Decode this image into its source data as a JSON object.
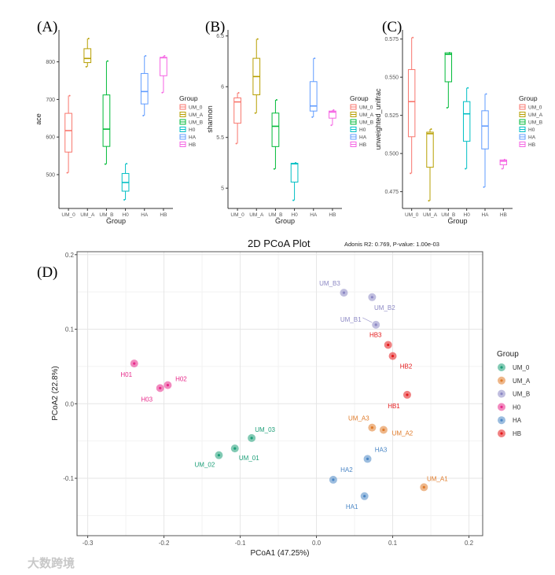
{
  "panel_labels": [
    "(A)",
    "(B)",
    "(C)",
    "(D)"
  ],
  "watermark": "大数跨境",
  "colors": {
    "box": {
      "UM_0": "#F8766D",
      "UM_A": "#B79F00",
      "UM_B": "#00BA38",
      "H0": "#00BFC4",
      "HA": "#619CFF",
      "HB": "#F564E3"
    },
    "pcoa": {
      "UM_0": "#1b9e77",
      "UM_A": "#e07b2a",
      "UM_B": "#8c88c4",
      "H0": "#e7298a",
      "HA": "#4a86c5",
      "HB": "#e41a1c"
    }
  },
  "chart_data": [
    {
      "type": "box",
      "panel": "(A)",
      "xlabel": "Group",
      "ylabel": "ace",
      "ylim": [
        410,
        885
      ],
      "yticks": [
        500,
        600,
        700,
        800
      ],
      "categories": [
        "UM_0",
        "UM_A",
        "UM_B",
        "H0",
        "HA",
        "HB"
      ],
      "legend_title": "Group",
      "legend_position": "right",
      "boxes": [
        {
          "group": "UM_0",
          "min": 505,
          "q1": 560,
          "median": 617,
          "q3": 663,
          "max": 710
        },
        {
          "group": "UM_A",
          "min": 787,
          "q1": 798,
          "median": 809,
          "q3": 835,
          "max": 862
        },
        {
          "group": "UM_B",
          "min": 528,
          "q1": 575,
          "median": 621,
          "q3": 712,
          "max": 802
        },
        {
          "group": "H0",
          "min": 433,
          "q1": 456,
          "median": 479,
          "q3": 503,
          "max": 529
        },
        {
          "group": "HA",
          "min": 657,
          "q1": 688,
          "median": 721,
          "q3": 769,
          "max": 816
        },
        {
          "group": "HB",
          "min": 718,
          "q1": 763,
          "median": 811,
          "q3": 812,
          "max": 816
        }
      ]
    },
    {
      "type": "box",
      "panel": "(B)",
      "xlabel": "Group",
      "ylabel": "shannon",
      "ylim": [
        4.8,
        6.56
      ],
      "yticks": [
        5.0,
        5.5,
        6.0,
        6.5
      ],
      "categories": [
        "UM_0",
        "UM_A",
        "UM_B",
        "H0",
        "HA",
        "HB"
      ],
      "legend_title": "Group",
      "legend_position": "right",
      "boxes": [
        {
          "group": "UM_0",
          "min": 5.44,
          "q1": 5.64,
          "median": 5.85,
          "q3": 5.89,
          "max": 5.94
        },
        {
          "group": "UM_A",
          "min": 5.74,
          "q1": 5.92,
          "median": 6.1,
          "q3": 6.28,
          "max": 6.47
        },
        {
          "group": "UM_B",
          "min": 5.19,
          "q1": 5.41,
          "median": 5.61,
          "q3": 5.74,
          "max": 5.87
        },
        {
          "group": "H0",
          "min": 4.88,
          "q1": 5.06,
          "median": 5.24,
          "q3": 5.245,
          "max": 5.25
        },
        {
          "group": "HA",
          "min": 5.7,
          "q1": 5.76,
          "median": 5.81,
          "q3": 6.05,
          "max": 6.28
        },
        {
          "group": "HB",
          "min": 5.62,
          "q1": 5.69,
          "median": 5.75,
          "q3": 5.76,
          "max": 5.77
        }
      ]
    },
    {
      "type": "box",
      "panel": "(C)",
      "xlabel": "Group",
      "ylabel": "unweighted_unifrac",
      "ylim": [
        0.464,
        0.581
      ],
      "yticks": [
        0.475,
        0.5,
        0.525,
        0.55,
        0.575
      ],
      "ytick_labels": [
        "0.475",
        "0.500",
        "0.525",
        "0.550",
        "0.575"
      ],
      "categories": [
        "UM_0",
        "UM_A",
        "UM_B",
        "H0",
        "HA",
        "HB"
      ],
      "legend_title": "Group",
      "legend_position": "right",
      "boxes": [
        {
          "group": "UM_0",
          "min": 0.487,
          "q1": 0.511,
          "median": 0.534,
          "q3": 0.555,
          "max": 0.576
        },
        {
          "group": "UM_A",
          "min": 0.469,
          "q1": 0.491,
          "median": 0.513,
          "q3": 0.514,
          "max": 0.516
        },
        {
          "group": "UM_B",
          "min": 0.53,
          "q1": 0.547,
          "median": 0.565,
          "q3": 0.566,
          "max": 0.566
        },
        {
          "group": "H0",
          "min": 0.49,
          "q1": 0.508,
          "median": 0.526,
          "q3": 0.534,
          "max": 0.543
        },
        {
          "group": "HA",
          "min": 0.478,
          "q1": 0.503,
          "median": 0.518,
          "q3": 0.528,
          "max": 0.539
        },
        {
          "group": "HB",
          "min": 0.49,
          "q1": 0.4926,
          "median": 0.495,
          "q3": 0.4958,
          "max": 0.496
        }
      ]
    },
    {
      "type": "scatter",
      "panel": "(D)",
      "title": "2D PCoA Plot",
      "subtitle": "Adonis R2: 0.769, P-value: 1.00e-03",
      "xlabel": "PCoA1 (47.25%)",
      "ylabel": "PCoA2 (22.8%)",
      "xlim": [
        -0.314,
        0.218
      ],
      "ylim": [
        -0.177,
        0.204
      ],
      "xticks": [
        -0.3,
        -0.2,
        -0.1,
        0.0,
        0.1,
        0.2
      ],
      "xtick_labels": [
        "-0.3",
        "-0.2",
        "-0.1",
        "0.0",
        "0.1",
        "0.2"
      ],
      "yticks": [
        -0.1,
        0.0,
        0.1,
        0.2
      ],
      "ytick_labels": [
        "-0.1",
        "0.0",
        "0.1",
        "0.2"
      ],
      "grid": true,
      "legend_title": "Group",
      "legend_position": "right",
      "legend": [
        "UM_0",
        "UM_A",
        "UM_B",
        "H0",
        "HA",
        "HB"
      ],
      "points": [
        {
          "label": "H01",
          "group": "H0",
          "x": -0.239,
          "y": 0.054
        },
        {
          "label": "H02",
          "group": "H0",
          "x": -0.195,
          "y": 0.025
        },
        {
          "label": "H03",
          "group": "H0",
          "x": -0.205,
          "y": 0.021
        },
        {
          "label": "UM_01",
          "group": "UM_0",
          "x": -0.107,
          "y": -0.06
        },
        {
          "label": "UM_02",
          "group": "UM_0",
          "x": -0.128,
          "y": -0.069
        },
        {
          "label": "UM_03",
          "group": "UM_0",
          "x": -0.085,
          "y": -0.046
        },
        {
          "label": "UM_B1",
          "group": "UM_B",
          "x": 0.078,
          "y": 0.106
        },
        {
          "label": "UM_B2",
          "group": "UM_B",
          "x": 0.073,
          "y": 0.143
        },
        {
          "label": "UM_B3",
          "group": "UM_B",
          "x": 0.036,
          "y": 0.149
        },
        {
          "label": "HB1",
          "group": "HB",
          "x": 0.119,
          "y": 0.012
        },
        {
          "label": "HB2",
          "group": "HB",
          "x": 0.1,
          "y": 0.064
        },
        {
          "label": "HB3",
          "group": "HB",
          "x": 0.094,
          "y": 0.079
        },
        {
          "label": "UM_A1",
          "group": "UM_A",
          "x": 0.141,
          "y": -0.112
        },
        {
          "label": "UM_A2",
          "group": "UM_A",
          "x": 0.088,
          "y": -0.035
        },
        {
          "label": "UM_A3",
          "group": "UM_A",
          "x": 0.073,
          "y": -0.032
        },
        {
          "label": "HA1",
          "group": "HA",
          "x": 0.063,
          "y": -0.124
        },
        {
          "label": "HA2",
          "group": "HA",
          "x": 0.022,
          "y": -0.102
        },
        {
          "label": "HA3",
          "group": "HA",
          "x": 0.067,
          "y": -0.074
        }
      ]
    }
  ]
}
